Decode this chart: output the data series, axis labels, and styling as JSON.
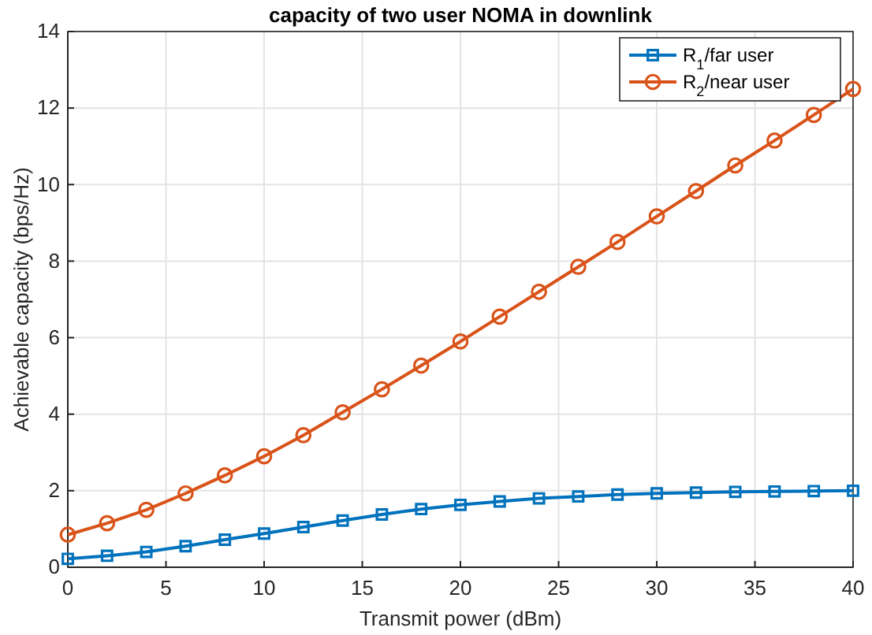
{
  "chart_data": {
    "type": "line",
    "title": "capacity of two user NOMA in downlink",
    "xlabel": "Transmit power (dBm)",
    "ylabel": "Achievable capacity (bps/Hz)",
    "x": [
      0,
      2,
      4,
      6,
      8,
      10,
      12,
      14,
      16,
      18,
      20,
      22,
      24,
      26,
      28,
      30,
      32,
      34,
      36,
      38,
      40
    ],
    "series": [
      {
        "name": "R$_{1}$/far user",
        "color": "#0072bd",
        "marker": "square",
        "values": [
          0.22,
          0.3,
          0.4,
          0.55,
          0.72,
          0.88,
          1.05,
          1.22,
          1.38,
          1.52,
          1.63,
          1.72,
          1.8,
          1.85,
          1.9,
          1.93,
          1.95,
          1.97,
          1.98,
          1.99,
          2.0
        ]
      },
      {
        "name": "R$_{2}$/near user",
        "color": "#d95319",
        "marker": "circle",
        "values": [
          0.85,
          1.15,
          1.5,
          1.93,
          2.4,
          2.9,
          3.45,
          4.05,
          4.65,
          5.27,
          5.9,
          6.55,
          7.2,
          7.85,
          8.5,
          9.17,
          9.83,
          10.5,
          11.15,
          11.82,
          12.5
        ]
      }
    ],
    "xlim": [
      0,
      40
    ],
    "xticks": [
      0,
      5,
      10,
      15,
      20,
      25,
      30,
      35,
      40
    ],
    "ylim": [
      0,
      14
    ],
    "yticks": [
      0,
      2,
      4,
      6,
      8,
      10,
      12,
      14
    ],
    "grid": true,
    "legend": "top right",
    "line_style": "solid"
  }
}
